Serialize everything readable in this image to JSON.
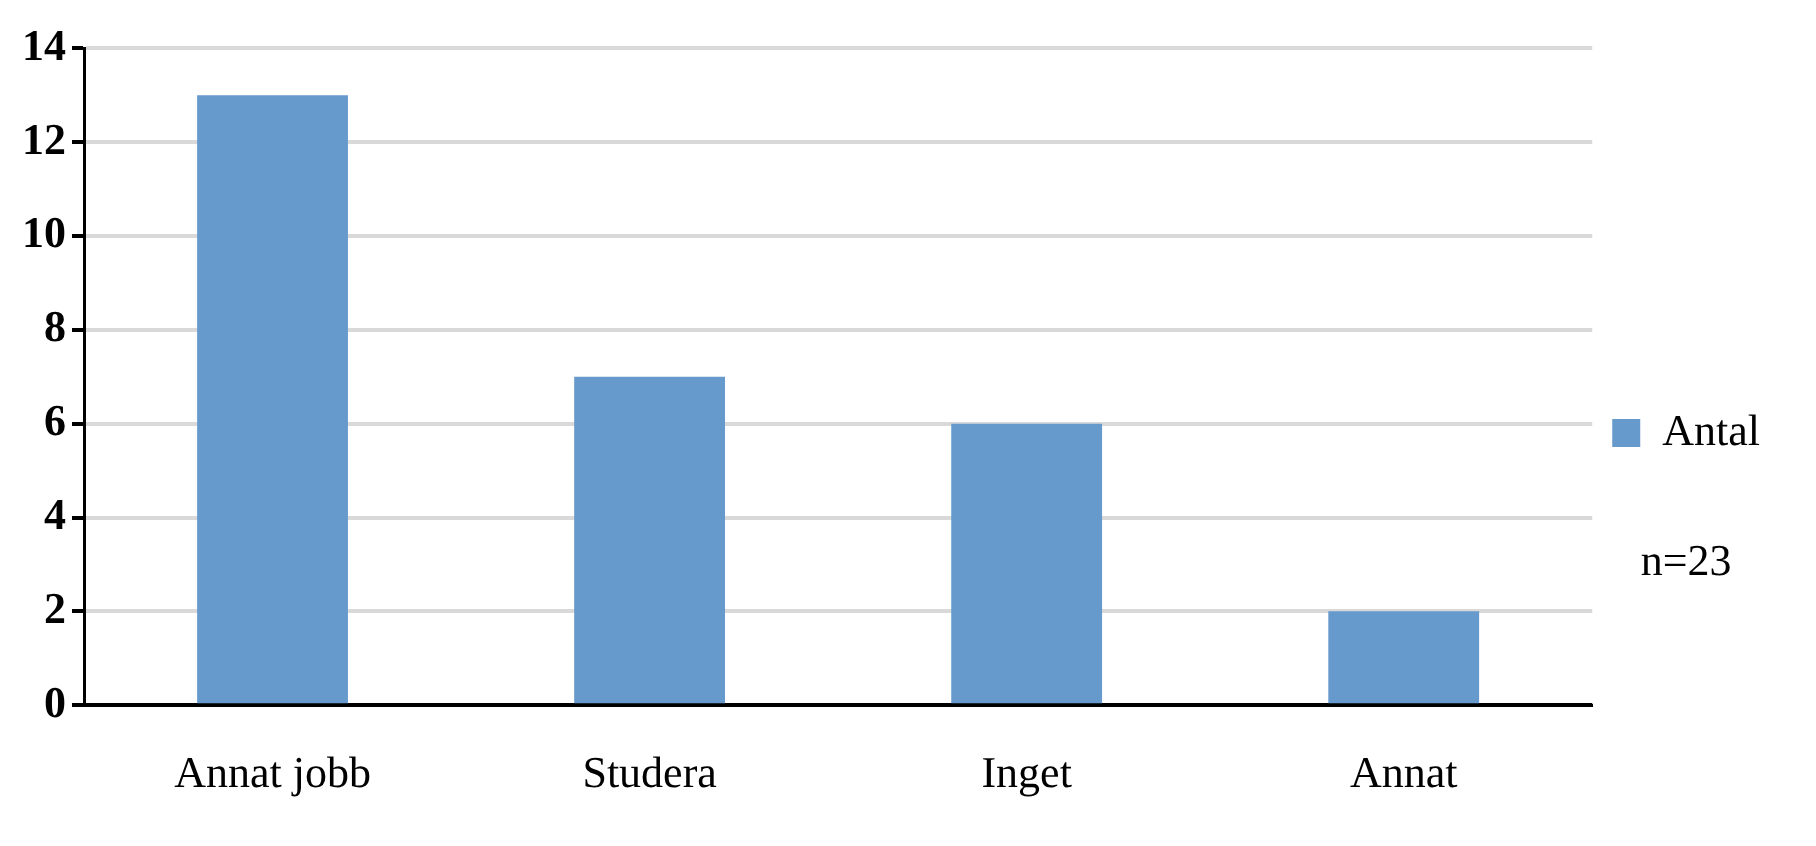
{
  "chart_data": {
    "type": "bar",
    "categories": [
      "Annat jobb",
      "Studera",
      "Inget",
      "Annat"
    ],
    "series": [
      {
        "name": "Antal",
        "color": "#6699cc",
        "values": [
          13,
          7,
          6,
          2
        ]
      }
    ],
    "ylim": [
      0,
      14
    ],
    "yticks": [
      0,
      2,
      4,
      6,
      8,
      10,
      12,
      14
    ],
    "grid": "y",
    "legend": "right",
    "annotations": [
      "n=23"
    ]
  }
}
